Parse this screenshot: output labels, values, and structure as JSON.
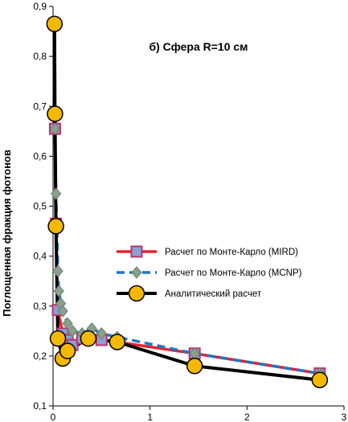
{
  "chart_data": {
    "type": "line",
    "title": "б)  Сфера R=10 см",
    "xlabel": "",
    "ylabel": "Поглощенная фракция фотонов",
    "xlim": [
      0,
      3
    ],
    "ylim": [
      0.1,
      0.9
    ],
    "xticks": [
      0,
      1,
      2,
      3
    ],
    "yticks": [
      "0,1",
      "0,2",
      "0,3",
      "0,4",
      "0,5",
      "0,6",
      "0,7",
      "0,8",
      "0,9"
    ],
    "legend_position": "right",
    "series": [
      {
        "name": "Расчет по Монте-Карло (MIRD)",
        "color": "#e8202a",
        "marker_color": "#8b9fd6",
        "marker_edge": "#c0306a",
        "marker": "square",
        "line_style": "solid",
        "x": [
          0.015,
          0.02,
          0.03,
          0.05,
          0.1,
          0.15,
          0.2,
          0.3,
          0.5,
          0.662,
          1.46,
          2.75
        ],
        "y": [
          0.865,
          0.655,
          0.465,
          0.292,
          0.245,
          0.232,
          0.222,
          0.235,
          0.232,
          0.228,
          0.205,
          0.165
        ]
      },
      {
        "name": "Расчет по Монте-Карло (MCNP)",
        "color": "#1e78c8",
        "marker_color": "#8aa08a",
        "marker_edge": "#6a806a",
        "marker": "diamond",
        "line_style": "dashed",
        "x": [
          0.015,
          0.02,
          0.03,
          0.04,
          0.05,
          0.06,
          0.08,
          0.1,
          0.15,
          0.2,
          0.3,
          0.4,
          0.5,
          0.662,
          1.46,
          2.75
        ],
        "y": [
          0.865,
          0.655,
          0.525,
          0.46,
          0.37,
          0.33,
          0.305,
          0.29,
          0.265,
          0.25,
          0.245,
          0.255,
          0.245,
          0.238,
          0.205,
          0.165
        ]
      },
      {
        "name": "Аналитический расчет",
        "color": "#000000",
        "marker_color": "#f5b800",
        "marker_edge": "#000000",
        "marker": "circle",
        "line_style": "solid",
        "x": [
          0.015,
          0.02,
          0.03,
          0.05,
          0.1,
          0.15,
          0.364,
          0.662,
          1.46,
          2.75
        ],
        "y": [
          0.865,
          0.685,
          0.46,
          0.235,
          0.195,
          0.21,
          0.235,
          0.228,
          0.18,
          0.152
        ]
      }
    ]
  }
}
